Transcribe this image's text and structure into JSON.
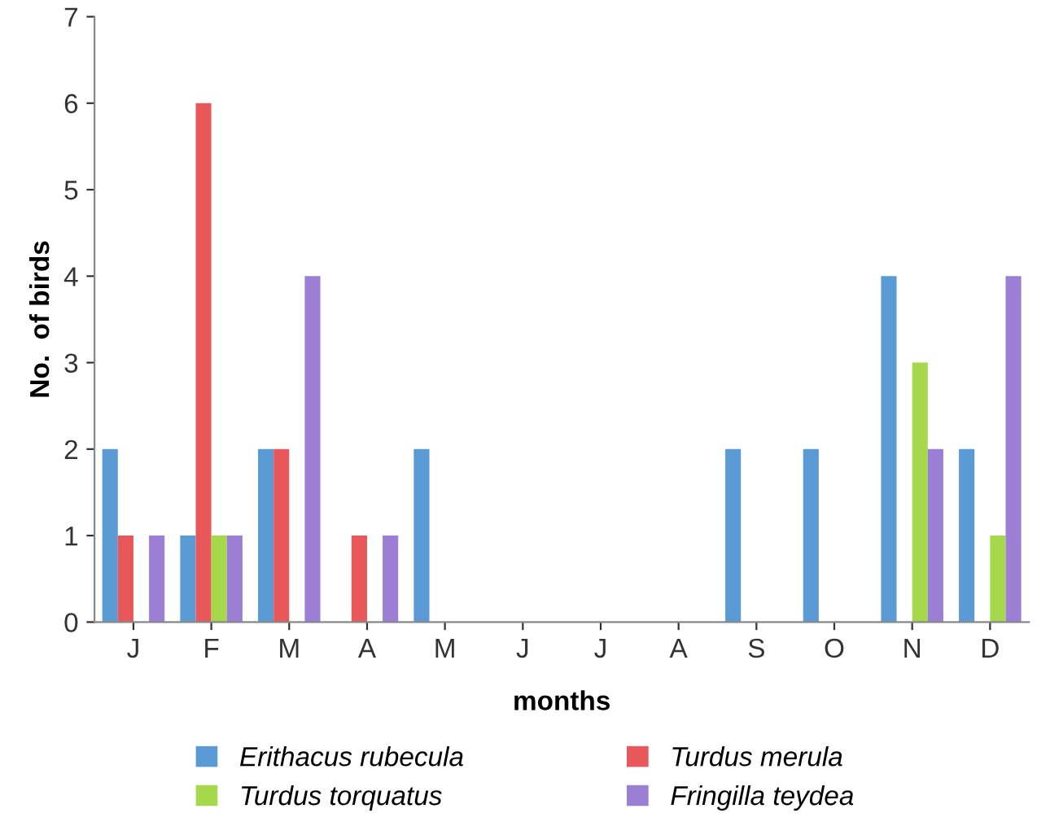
{
  "chart_data": {
    "type": "bar",
    "xlabel": "months",
    "ylabel": "No.  of birds",
    "categories": [
      "J",
      "F",
      "M",
      "A",
      "M",
      "J",
      "J",
      "A",
      "S",
      "O",
      "N",
      "D"
    ],
    "series": [
      {
        "name": "Erithacus rubecula",
        "color": "#5b9bd5",
        "values": [
          2,
          1,
          2,
          0,
          2,
          0,
          0,
          0,
          2,
          2,
          4,
          2
        ]
      },
      {
        "name": "Turdus merula",
        "color": "#e8585a",
        "values": [
          1,
          6,
          2,
          1,
          0,
          0,
          0,
          0,
          0,
          0,
          0,
          0
        ]
      },
      {
        "name": "Turdus torquatus",
        "color": "#a5d84a",
        "values": [
          0,
          1,
          0,
          0,
          0,
          0,
          0,
          0,
          0,
          0,
          3,
          1
        ]
      },
      {
        "name": "Fringilla teydea",
        "color": "#9b7fd4",
        "values": [
          1,
          1,
          4,
          1,
          0,
          0,
          0,
          0,
          0,
          0,
          2,
          4
        ]
      }
    ],
    "ylim": [
      0,
      7
    ],
    "yticks": [
      0,
      1,
      2,
      3,
      4,
      5,
      6,
      7
    ],
    "grid": false,
    "legend": "bottom"
  }
}
